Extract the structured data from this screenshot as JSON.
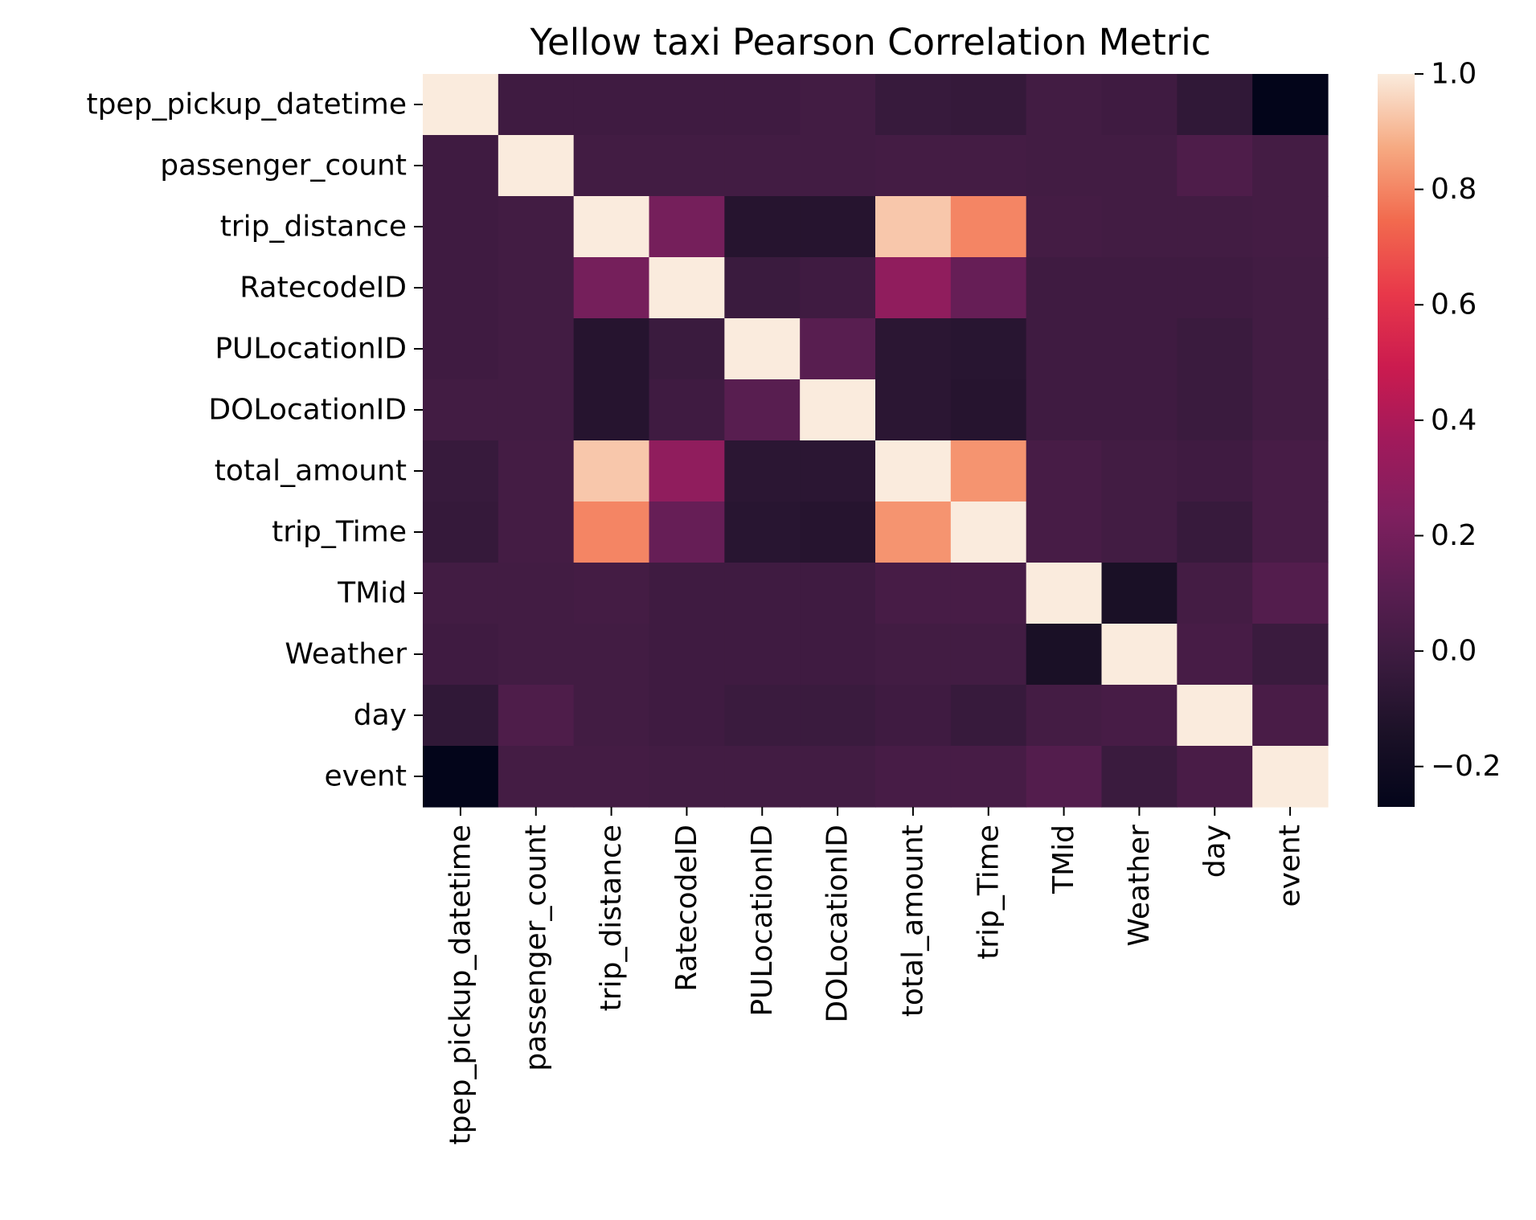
{
  "chart_data": {
    "type": "heatmap",
    "title": "Yellow taxi Pearson Correlation Metric",
    "labels": [
      "tpep_pickup_datetime",
      "passenger_count",
      "trip_distance",
      "RatecodeID",
      "PULocationID",
      "DOLocationID",
      "total_amount",
      "trip_Time",
      "TMid",
      "Weather",
      "day",
      "event"
    ],
    "matrix": [
      [
        1.0,
        0.0,
        0.0,
        0.0,
        0.0,
        0.01,
        -0.03,
        -0.04,
        0.01,
        0.0,
        -0.06,
        -0.27
      ],
      [
        0.0,
        1.0,
        0.01,
        0.01,
        0.01,
        0.01,
        0.02,
        0.02,
        0.01,
        0.01,
        0.06,
        0.02
      ],
      [
        0.0,
        0.01,
        1.0,
        0.2,
        -0.1,
        -0.1,
        0.93,
        0.8,
        0.02,
        0.01,
        0.01,
        0.02
      ],
      [
        0.0,
        0.01,
        0.2,
        1.0,
        -0.02,
        0.0,
        0.3,
        0.15,
        0.0,
        0.0,
        0.0,
        0.01
      ],
      [
        0.0,
        0.01,
        -0.1,
        -0.02,
        1.0,
        0.1,
        -0.08,
        -0.09,
        0.0,
        0.0,
        -0.02,
        0.01
      ],
      [
        0.01,
        0.01,
        -0.1,
        0.0,
        0.1,
        1.0,
        -0.08,
        -0.1,
        0.0,
        0.0,
        -0.02,
        0.01
      ],
      [
        -0.03,
        0.02,
        0.93,
        0.3,
        -0.08,
        -0.08,
        1.0,
        0.83,
        0.03,
        0.01,
        0.0,
        0.03
      ],
      [
        -0.04,
        0.02,
        0.8,
        0.15,
        -0.09,
        -0.1,
        0.83,
        1.0,
        0.03,
        0.01,
        -0.03,
        0.03
      ],
      [
        0.01,
        0.01,
        0.02,
        0.0,
        0.0,
        0.0,
        0.03,
        0.03,
        1.0,
        -0.15,
        0.02,
        0.08
      ],
      [
        0.0,
        0.01,
        0.01,
        0.0,
        0.0,
        0.0,
        0.01,
        0.01,
        -0.15,
        1.0,
        0.03,
        -0.02
      ],
      [
        -0.06,
        0.06,
        0.01,
        0.0,
        -0.02,
        -0.02,
        0.0,
        -0.03,
        0.02,
        0.03,
        1.0,
        0.04
      ],
      [
        -0.27,
        0.02,
        0.02,
        0.01,
        0.01,
        0.01,
        0.03,
        0.03,
        0.08,
        -0.02,
        0.04,
        1.0
      ]
    ],
    "vmin": -0.27,
    "vmax": 1.0,
    "colorbar": {
      "ticks": [
        -0.2,
        0.0,
        0.2,
        0.4,
        0.6,
        0.8,
        1.0
      ],
      "tick_labels": [
        "−0.2",
        "0.0",
        "0.2",
        "0.4",
        "0.6",
        "0.8",
        "1.0"
      ]
    },
    "colormap": "rocket",
    "colormap_stops": [
      [
        0.0,
        "#03051a"
      ],
      [
        0.1,
        "#1b1127"
      ],
      [
        0.2,
        "#3b1b3f"
      ],
      [
        0.3,
        "#5b1e52"
      ],
      [
        0.4,
        "#801f5f"
      ],
      [
        0.5,
        "#a11a5b"
      ],
      [
        0.6,
        "#cb1b4f"
      ],
      [
        0.7,
        "#e8384a"
      ],
      [
        0.8,
        "#f26a4e"
      ],
      [
        0.9,
        "#f6aa82"
      ],
      [
        1.0,
        "#faebdd"
      ]
    ]
  }
}
